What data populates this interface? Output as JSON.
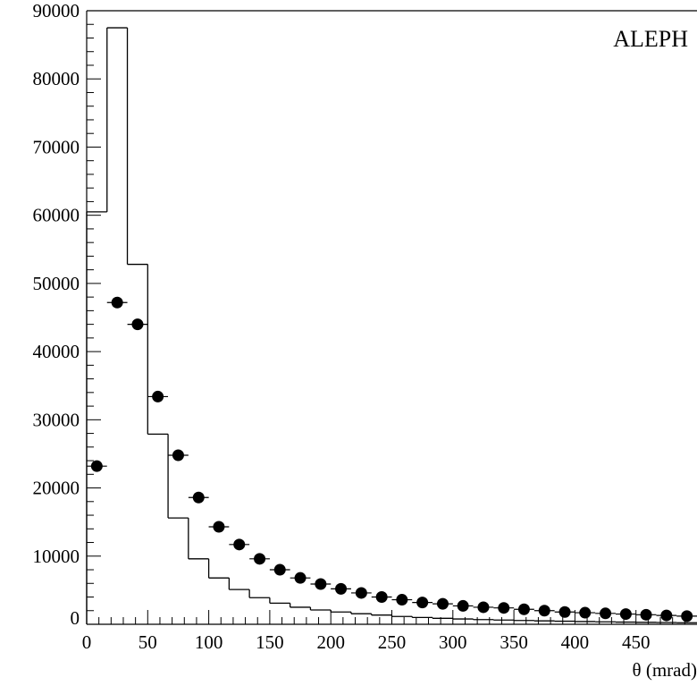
{
  "chart_data": {
    "type": "scatter",
    "title": "ALEPH",
    "xlabel": "θ (mrad)",
    "ylabel": "",
    "xlim": [
      0,
      500
    ],
    "ylim": [
      0,
      90000
    ],
    "grid": false,
    "legend": "none",
    "x_ticks": [
      "0",
      "50",
      "100",
      "150",
      "200",
      "250",
      "300",
      "350",
      "400",
      "450"
    ],
    "y_ticks": [
      "0",
      "10000",
      "20000",
      "30000",
      "40000",
      "50000",
      "60000",
      "70000",
      "80000",
      "90000"
    ],
    "series": [
      {
        "kind": "histogram",
        "bin_width": 16.67,
        "bin_edges": [
          0,
          16.67,
          33.33,
          50,
          66.67,
          83.33,
          100,
          116.67,
          133.33,
          150,
          166.67,
          183.33,
          200,
          216.67,
          233.33,
          250,
          266.67,
          283.33,
          300,
          316.67,
          333.33,
          350,
          366.67,
          383.33,
          400,
          416.67,
          433.33,
          450,
          466.67,
          483.33,
          500
        ],
        "values": [
          60500,
          87500,
          52800,
          27900,
          15600,
          9600,
          6800,
          5100,
          3900,
          3100,
          2500,
          2100,
          1800,
          1550,
          1350,
          1150,
          1000,
          880,
          780,
          690,
          620,
          560,
          500,
          450,
          400,
          360,
          320,
          290,
          260,
          230
        ]
      },
      {
        "kind": "points",
        "x": [
          8.3,
          25,
          41.7,
          58.3,
          75,
          91.7,
          108.3,
          125,
          141.7,
          158.3,
          175,
          191.7,
          208.3,
          225,
          241.7,
          258.3,
          275,
          291.7,
          308.3,
          325,
          341.7,
          358.3,
          375,
          391.7,
          408.3,
          425,
          441.7,
          458.3,
          475,
          491.7
        ],
        "y": [
          23200,
          47200,
          44000,
          33400,
          24800,
          18600,
          14300,
          11700,
          9600,
          8000,
          6800,
          5900,
          5200,
          4600,
          4000,
          3600,
          3200,
          3000,
          2700,
          2500,
          2400,
          2200,
          2000,
          1800,
          1700,
          1600,
          1500,
          1400,
          1300,
          1200
        ]
      }
    ]
  }
}
